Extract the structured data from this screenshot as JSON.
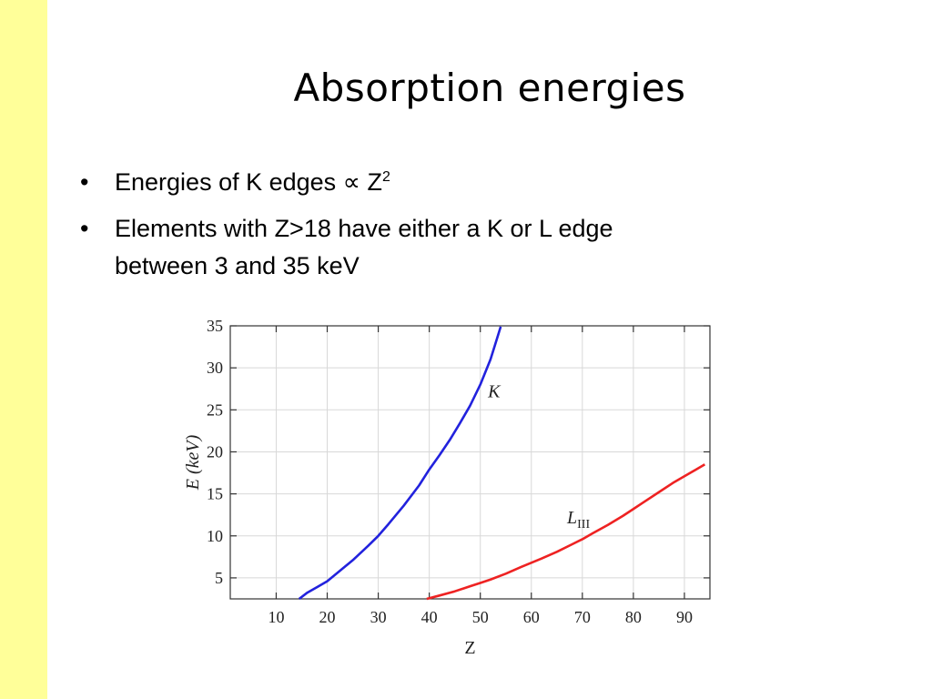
{
  "slide": {
    "title": "Absorption energies",
    "bullet_glyph": "•",
    "bullet1": {
      "text": "Energies of K edges ",
      "symbol": "∝",
      "base": " Z",
      "exponent": "2"
    },
    "bullet2": {
      "line1": "Elements with Z>18 have either a K or L edge",
      "line2": "between 3 and 35 keV"
    }
  },
  "chart_data": {
    "type": "line",
    "title": "",
    "xlabel": "Z",
    "ylabel": "E (keV)",
    "xlim": [
      1,
      95
    ],
    "ylim": [
      2.5,
      35
    ],
    "xticks": [
      10,
      20,
      30,
      40,
      50,
      60,
      70,
      80,
      90
    ],
    "yticks": [
      5,
      10,
      15,
      20,
      25,
      30,
      35
    ],
    "grid": true,
    "legend": "none",
    "series": [
      {
        "name": "K",
        "label_main": "K",
        "label_sub": "",
        "color": "#2222dd",
        "label_at": [
          51.5,
          26.5
        ],
        "x": [
          14.5,
          16,
          18,
          20,
          22,
          25,
          28,
          30,
          32,
          35,
          38,
          40,
          42,
          44,
          46,
          48,
          50,
          52,
          54
        ],
        "y": [
          2.5,
          3.2,
          3.9,
          4.6,
          5.6,
          7.1,
          8.8,
          10.0,
          11.4,
          13.6,
          16.0,
          17.9,
          19.6,
          21.4,
          23.4,
          25.5,
          28.0,
          31.0,
          34.9
        ]
      },
      {
        "name": "LIII",
        "label_main": "L",
        "label_sub": "III",
        "color": "#ee2222",
        "label_at": [
          67,
          11.5
        ],
        "x": [
          39.5,
          42,
          45,
          48,
          50,
          52,
          55,
          58,
          60,
          62,
          65,
          68,
          70,
          72,
          75,
          78,
          80,
          82,
          85,
          88,
          90,
          94
        ],
        "y": [
          2.5,
          2.9,
          3.4,
          4.0,
          4.4,
          4.8,
          5.5,
          6.3,
          6.8,
          7.3,
          8.1,
          9.0,
          9.6,
          10.3,
          11.3,
          12.4,
          13.2,
          14.0,
          15.2,
          16.4,
          17.1,
          18.5
        ]
      }
    ]
  }
}
